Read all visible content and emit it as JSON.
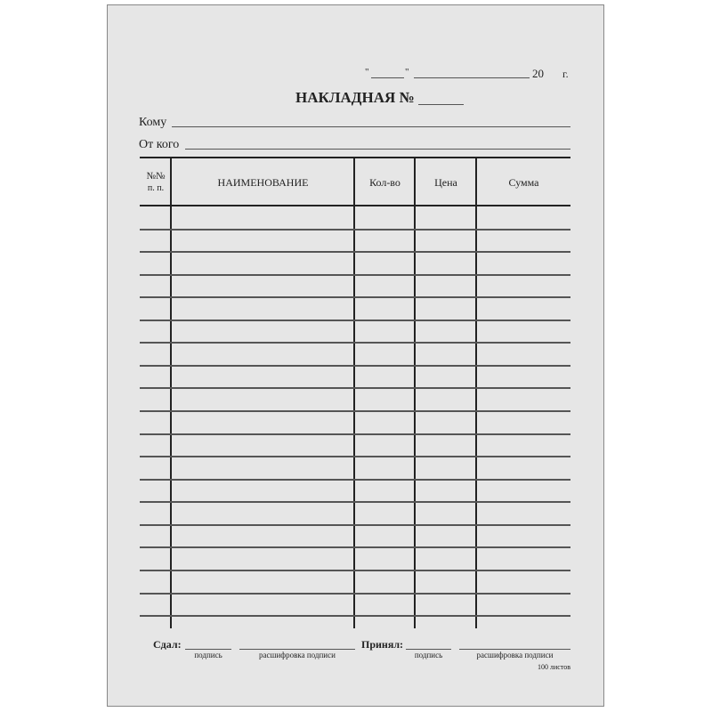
{
  "date_line": {
    "open_quote": "\"",
    "close_quote": "\"",
    "year_prefix": "20",
    "year_suffix": "г."
  },
  "title": "НАКЛАДНАЯ №",
  "fields": {
    "to_label": "Кому",
    "from_label": "От кого"
  },
  "table": {
    "columns": [
      {
        "label_line1": "№№",
        "label_line2": "п. п."
      },
      {
        "label": "НАИМЕНОВАНИЕ"
      },
      {
        "label": "Кол-во"
      },
      {
        "label": "Цена"
      },
      {
        "label": "Сумма"
      }
    ]
  },
  "footer": {
    "handed_label": "Сдал:",
    "received_label": "Принял:",
    "signature_caption": "подпись",
    "decode_caption": "расшифровка подписи",
    "sheet_count": "100 листов"
  }
}
